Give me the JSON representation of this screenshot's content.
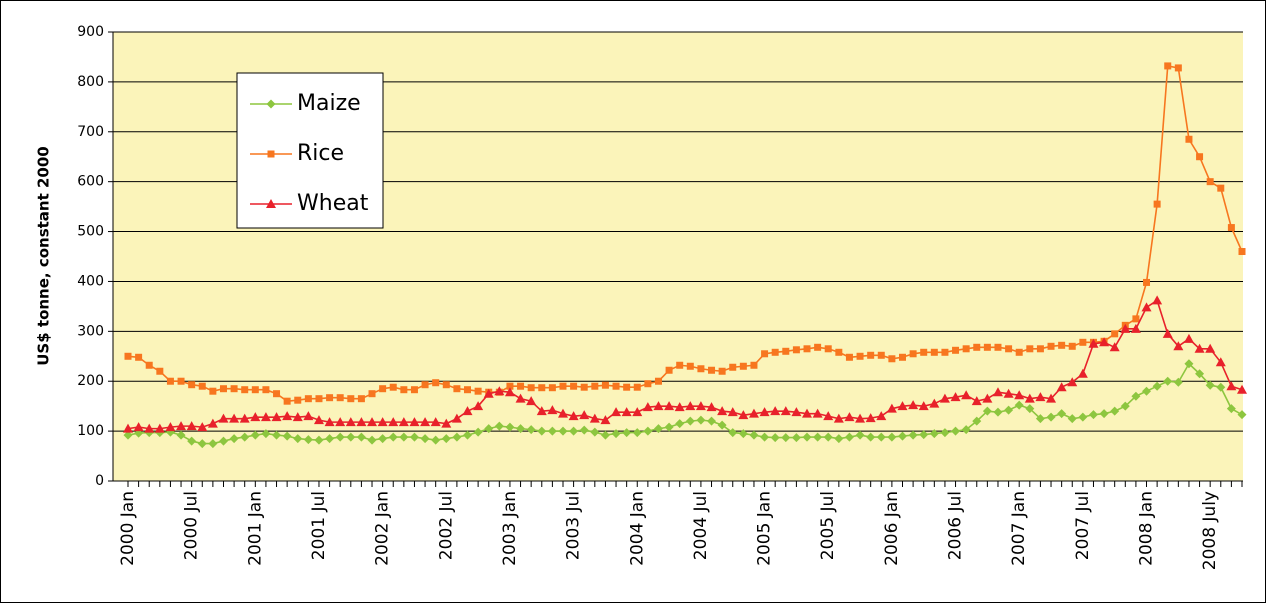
{
  "chart_data": {
    "type": "line",
    "y_label": "US$ tonne, constant 2000",
    "categories": [
      "2000 Jan",
      null,
      null,
      null,
      null,
      null,
      "2000 Jul",
      null,
      null,
      null,
      null,
      null,
      "2001 Jan",
      null,
      null,
      null,
      null,
      null,
      "2001 Jul",
      null,
      null,
      null,
      null,
      null,
      "2002 Jan",
      null,
      null,
      null,
      null,
      null,
      "2002 Jul",
      null,
      null,
      null,
      null,
      null,
      "2003 Jan",
      null,
      null,
      null,
      null,
      null,
      "2003 Jul",
      null,
      null,
      null,
      null,
      null,
      "2004 Jan",
      null,
      null,
      null,
      null,
      null,
      "2004 Jul",
      null,
      null,
      null,
      null,
      null,
      "2005 Jan",
      null,
      null,
      null,
      null,
      null,
      "2005 Jul",
      null,
      null,
      null,
      null,
      null,
      "2006 Jan",
      null,
      null,
      null,
      null,
      null,
      "2006 Jul",
      null,
      null,
      null,
      null,
      null,
      "2007 Jan",
      null,
      null,
      null,
      null,
      null,
      "2007 Jul",
      null,
      null,
      null,
      null,
      null,
      "2008 Jan",
      null,
      null,
      null,
      null,
      null,
      "2008 July",
      null,
      null,
      null
    ],
    "series": [
      {
        "name": "Maize",
        "color": "#8dc63f",
        "marker": "diamond",
        "values": [
          92,
          96,
          97,
          97,
          98,
          92,
          80,
          75,
          75,
          80,
          85,
          88,
          92,
          95,
          92,
          90,
          85,
          83,
          82,
          85,
          88,
          88,
          88,
          82,
          85,
          88,
          88,
          88,
          85,
          82,
          85,
          88,
          92,
          98,
          105,
          110,
          108,
          105,
          103,
          100,
          100,
          100,
          100,
          102,
          98,
          92,
          95,
          97,
          97,
          100,
          105,
          108,
          115,
          120,
          122,
          120,
          112,
          97,
          95,
          92,
          88,
          87,
          87,
          87,
          88,
          88,
          88,
          85,
          88,
          92,
          88,
          88,
          88,
          90,
          92,
          93,
          95,
          97,
          100,
          103,
          120,
          140,
          138,
          142,
          152,
          145,
          125,
          128,
          135,
          125,
          128,
          133,
          135,
          140,
          150,
          170,
          180,
          190,
          200,
          198,
          235,
          215,
          192,
          188,
          145,
          133
        ]
      },
      {
        "name": "Rice",
        "color": "#f7761f",
        "marker": "square",
        "values": [
          250,
          248,
          232,
          220,
          200,
          200,
          193,
          190,
          180,
          185,
          185,
          183,
          183,
          183,
          175,
          160,
          162,
          165,
          165,
          167,
          167,
          165,
          165,
          175,
          185,
          188,
          183,
          183,
          193,
          197,
          193,
          185,
          183,
          180,
          178,
          178,
          190,
          190,
          187,
          187,
          187,
          190,
          190,
          188,
          190,
          192,
          190,
          188,
          188,
          195,
          200,
          222,
          232,
          230,
          225,
          222,
          220,
          228,
          230,
          232,
          255,
          258,
          260,
          263,
          265,
          268,
          265,
          258,
          248,
          250,
          252,
          252,
          245,
          248,
          255,
          258,
          258,
          258,
          262,
          265,
          268,
          268,
          268,
          265,
          258,
          265,
          265,
          270,
          272,
          270,
          278,
          278,
          280,
          295,
          312,
          325,
          398,
          555,
          832,
          828,
          685,
          650,
          600,
          587,
          508,
          460
        ]
      },
      {
        "name": "Wheat",
        "color": "#e8212b",
        "marker": "triangle",
        "values": [
          105,
          108,
          105,
          105,
          108,
          110,
          110,
          108,
          115,
          125,
          125,
          125,
          128,
          128,
          128,
          130,
          128,
          130,
          122,
          118,
          118,
          118,
          118,
          118,
          118,
          118,
          118,
          118,
          118,
          118,
          115,
          125,
          140,
          150,
          175,
          180,
          178,
          165,
          160,
          140,
          142,
          135,
          130,
          132,
          125,
          122,
          138,
          138,
          138,
          148,
          150,
          150,
          148,
          150,
          150,
          148,
          140,
          138,
          132,
          135,
          138,
          140,
          140,
          138,
          135,
          135,
          130,
          125,
          128,
          125,
          126,
          130,
          145,
          150,
          152,
          150,
          155,
          165,
          168,
          172,
          160,
          165,
          178,
          175,
          172,
          165,
          168,
          165,
          188,
          198,
          215,
          275,
          278,
          268,
          305,
          305,
          348,
          362,
          295,
          270,
          285,
          265,
          265,
          238,
          190,
          183
        ]
      }
    ],
    "ylim": [
      0,
      900
    ],
    "yticks": [
      0,
      100,
      200,
      300,
      400,
      500,
      600,
      700,
      800,
      900
    ],
    "grid": true,
    "legend": "upper-left",
    "plot_background": "#fbf4ba"
  }
}
